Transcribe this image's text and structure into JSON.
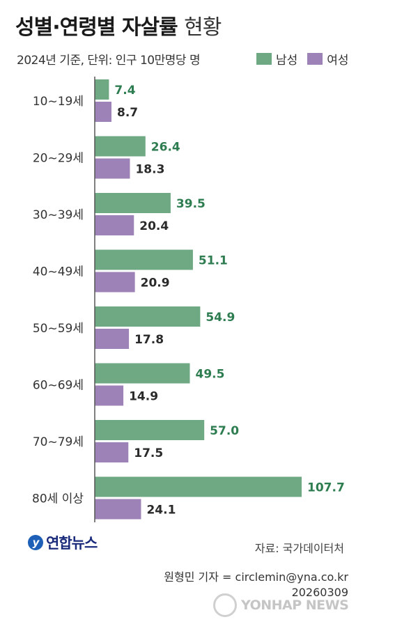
{
  "header": {
    "title_bold": "성별·연령별 자살률",
    "title_light": "현황",
    "subtitle": "2024년 기준, 단위: 인구 10만명당 명"
  },
  "colors": {
    "male": "#6fa984",
    "female": "#9c82b7",
    "male_label": "#2e7d51",
    "female_label": "#2a2a2a"
  },
  "chart_data": {
    "type": "bar",
    "orientation": "horizontal",
    "categories": [
      "10~19세",
      "20~29세",
      "30~39세",
      "40~49세",
      "50~59세",
      "60~69세",
      "70~79세",
      "80세 이상"
    ],
    "series": [
      {
        "name": "남성",
        "values": [
          7.4,
          26.4,
          39.5,
          51.1,
          54.9,
          49.5,
          57.0,
          107.7
        ]
      },
      {
        "name": "여성",
        "values": [
          8.7,
          18.3,
          20.4,
          20.9,
          17.8,
          14.9,
          17.5,
          24.1
        ]
      }
    ],
    "value_labels": {
      "남성": [
        "7.4",
        "26.4",
        "39.5",
        "51.1",
        "54.9",
        "49.5",
        "57.0",
        "107.7"
      ],
      "여성": [
        "8.7",
        "18.3",
        "20.4",
        "20.9",
        "17.8",
        "14.9",
        "17.5",
        "24.1"
      ]
    },
    "xlim": [
      0,
      107.7
    ],
    "legend": "top-right",
    "grid": false
  },
  "footer": {
    "logo_text": "연합뉴스",
    "source": "자료: 국가데이터처",
    "credit_line1": "원형민 기자 = circlemin@yna.co.kr",
    "credit_line2": "20260309",
    "watermark": "YONHAP NEWS"
  }
}
